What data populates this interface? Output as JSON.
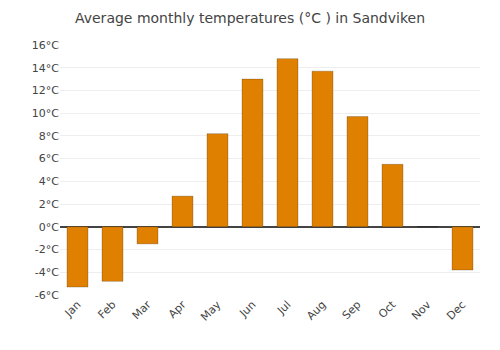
{
  "chart_data": {
    "type": "bar",
    "title": "Average monthly temperatures (°C ) in Sandviken",
    "categories": [
      "Jan",
      "Feb",
      "Mar",
      "Apr",
      "May",
      "Jun",
      "Jul",
      "Aug",
      "Sep",
      "Oct",
      "Nov",
      "Dec"
    ],
    "values": [
      -5.3,
      -4.8,
      -1.5,
      2.7,
      8.2,
      13.0,
      14.8,
      13.7,
      9.7,
      5.5,
      0.0,
      -3.8
    ],
    "color": "#E08000",
    "ylim": [
      -6,
      16
    ],
    "yticks": [
      {
        "value": -6,
        "label": "-6°C"
      },
      {
        "value": -4,
        "label": "-4°C"
      },
      {
        "value": -2,
        "label": "-2°C"
      },
      {
        "value": 0,
        "label": "0°C"
      },
      {
        "value": 2,
        "label": "2°C"
      },
      {
        "value": 4,
        "label": "4°C"
      },
      {
        "value": 6,
        "label": "6°C"
      },
      {
        "value": 8,
        "label": "8°C"
      },
      {
        "value": 10,
        "label": "10°C"
      },
      {
        "value": 12,
        "label": "12°C"
      },
      {
        "value": 14,
        "label": "14°C"
      },
      {
        "value": 16,
        "label": "16°C"
      }
    ],
    "grid": true
  }
}
